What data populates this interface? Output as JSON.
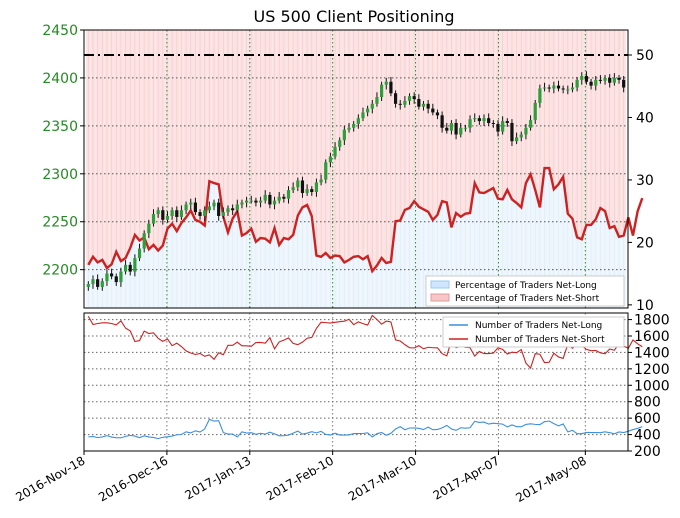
{
  "chart_data": [
    {
      "type": "candlestick",
      "title": "US 500 Client Positioning",
      "x_tick_labels": [
        "2016-Nov-18",
        "2016-Dec-16",
        "2017-Jan-13",
        "2017-Feb-10",
        "2017-Mar-10",
        "2017-Apr-07",
        "2017-May-08"
      ],
      "left_axis": {
        "ticks": [
          "2200",
          "2250",
          "2300",
          "2350",
          "2400",
          "2450"
        ],
        "ylim": [
          2160,
          2450
        ],
        "color": "#228B22"
      },
      "right_axis": {
        "ticks": [
          "10",
          "20",
          "30",
          "40",
          "50"
        ],
        "ylim": [
          9.5,
          54
        ],
        "color": "#000000"
      },
      "reference_line_right": 50,
      "price_series": {
        "name": "US 500",
        "values": [
          2185,
          2190,
          2182,
          2188,
          2196,
          2193,
          2187,
          2198,
          2205,
          2198,
          2212,
          2222,
          2238,
          2248,
          2258,
          2262,
          2252,
          2256,
          2262,
          2255,
          2262,
          2268,
          2270,
          2260,
          2256,
          2262,
          2266,
          2270,
          2256,
          2260,
          2264,
          2262,
          2268,
          2270,
          2272,
          2272,
          2270,
          2272,
          2278,
          2268,
          2272,
          2276,
          2274,
          2283,
          2286,
          2293,
          2280,
          2284,
          2281,
          2291,
          2294,
          2312,
          2318,
          2328,
          2335,
          2346,
          2348,
          2352,
          2358,
          2364,
          2368,
          2373,
          2380,
          2393,
          2396,
          2384,
          2373,
          2372,
          2376,
          2381,
          2378,
          2370,
          2373,
          2368,
          2364,
          2361,
          2348,
          2345,
          2353,
          2341,
          2348,
          2348,
          2357,
          2358,
          2355,
          2358,
          2353,
          2352,
          2344,
          2355,
          2353,
          2334,
          2338,
          2341,
          2348,
          2356,
          2374,
          2389,
          2390,
          2389,
          2392,
          2389,
          2388,
          2388,
          2390,
          2398,
          2402,
          2396,
          2392,
          2398,
          2397,
          2400,
          2395,
          2400,
          2398,
          2390
        ]
      },
      "series": [
        {
          "name": "Percentage of Traders Net-Short",
          "color": "#cc2222",
          "values": [
            16.4,
            17.7,
            16.8,
            17.2,
            15.9,
            16.5,
            18.5,
            17.0,
            17.5,
            19.1,
            21.2,
            20.3,
            20.8,
            18.9,
            19.6,
            18.7,
            19.5,
            22.2,
            23.0,
            21.8,
            23.1,
            24.0,
            25.1,
            23.6,
            23.3,
            22.7,
            29.8,
            29.5,
            29.3,
            24.1,
            21.6,
            23.8,
            25.0,
            21.1,
            21.5,
            22.2,
            20.1,
            20.7,
            20.6,
            20.0,
            22.3,
            19.6,
            20.7,
            20.5,
            21.2,
            24.3,
            25.6,
            26.0,
            24.2,
            17.9,
            17.7,
            18.3,
            17.5,
            17.9,
            17.8,
            16.8,
            17.2,
            17.7,
            17.8,
            17.3,
            17.8,
            15.4,
            16.3,
            17.5,
            16.7,
            16.9,
            23.4,
            23.5,
            25.2,
            25.5,
            26.6,
            25.7,
            25.3,
            24.9,
            23.6,
            24.4,
            26.6,
            26.4,
            22.4,
            24.7,
            24.1,
            24.6,
            24.7,
            29.5,
            28.0,
            27.9,
            28.3,
            28.7,
            27.0,
            26.9,
            28.4,
            26.9,
            26.3,
            25.6,
            29.5,
            30.9,
            28.4,
            25.6,
            31.9,
            31.9,
            28.5,
            29.3,
            30.5,
            24.6,
            23.8,
            20.8,
            20.5,
            22.8,
            22.8,
            23.7,
            25.5,
            25.0,
            22.3,
            22.6,
            20.9,
            21.1,
            24.0,
            21.1,
            25.0,
            27.1
          ]
        }
      ],
      "legend": {
        "position": "bottom-right",
        "entries": [
          {
            "label": "Percentage of Traders Net-Long",
            "color": "#cfe6ff"
          },
          {
            "label": "Percentage of Traders Net-Short",
            "color": "#f7c7c7"
          }
        ]
      }
    },
    {
      "type": "line",
      "right_axis": {
        "ticks": [
          "200",
          "400",
          "600",
          "800",
          "1000",
          "1200",
          "1400",
          "1600",
          "1800"
        ],
        "ylim": [
          200,
          1880
        ]
      },
      "series": [
        {
          "name": "Number of Traders Net-Long",
          "color": "#3c8fe0",
          "values": [
            372,
            377,
            363,
            371,
            387,
            370,
            362,
            360,
            378,
            390,
            382,
            363,
            385,
            371,
            365,
            351,
            367,
            373,
            382,
            398,
            401,
            434,
            420,
            446,
            431,
            469,
            585,
            564,
            569,
            424,
            406,
            407,
            371,
            433,
            419,
            423,
            403,
            416,
            405,
            428,
            408,
            385,
            387,
            394,
            418,
            442,
            406,
            417,
            435,
            421,
            439,
            402,
            394,
            416,
            394,
            394,
            395,
            413,
            412,
            413,
            421,
            371,
            411,
            425,
            392,
            416,
            468,
            496,
            459,
            480,
            481,
            476,
            461,
            490,
            459,
            462,
            482,
            512,
            468,
            452,
            483,
            478,
            483,
            561,
            548,
            552,
            528,
            539,
            533,
            527,
            493,
            518,
            496,
            496,
            523,
            531,
            524,
            521,
            557,
            565,
            533,
            506,
            529,
            433,
            452,
            411,
            411,
            426,
            424,
            425,
            423,
            434,
            423,
            410,
            432,
            425,
            440,
            461,
            476,
            497
          ]
        },
        {
          "name": "Number of Traders Net-Short",
          "color": "#cc2222",
          "values": [
            1840,
            1740,
            1752,
            1760,
            1761,
            1752,
            1735,
            1784,
            1696,
            1662,
            1533,
            1544,
            1660,
            1630,
            1639,
            1572,
            1535,
            1564,
            1482,
            1513,
            1472,
            1419,
            1393,
            1375,
            1388,
            1353,
            1371,
            1317,
            1396,
            1372,
            1487,
            1487,
            1525,
            1481,
            1481,
            1475,
            1520,
            1522,
            1513,
            1580,
            1444,
            1528,
            1550,
            1577,
            1510,
            1494,
            1525,
            1573,
            1582,
            1693,
            1768,
            1763,
            1758,
            1767,
            1774,
            1780,
            1804,
            1738,
            1772,
            1751,
            1733,
            1851,
            1801,
            1744,
            1781,
            1771,
            1552,
            1539,
            1495,
            1458,
            1454,
            1483,
            1444,
            1463,
            1457,
            1456,
            1386,
            1358,
            1548,
            1457,
            1477,
            1462,
            1457,
            1355,
            1412,
            1386,
            1386,
            1392,
            1456,
            1437,
            1380,
            1403,
            1397,
            1435,
            1270,
            1210,
            1385,
            1378,
            1275,
            1280,
            1390,
            1345,
            1327,
            1498,
            1450,
            1500,
            1483,
            1437,
            1421,
            1424,
            1395,
            1384,
            1442,
            1426,
            1508,
            1476,
            1450,
            1552,
            1505,
            1469
          ]
        }
      ],
      "legend": {
        "position": "top-right"
      }
    }
  ]
}
